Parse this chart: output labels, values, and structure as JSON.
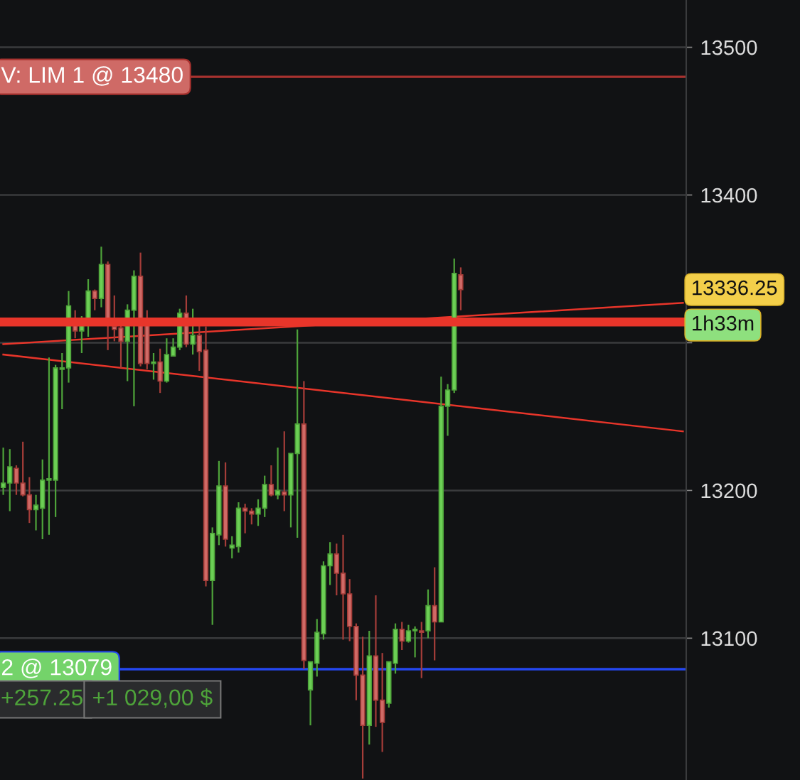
{
  "chart_data": {
    "type": "candlestick",
    "categories": [
      null,
      null,
      null,
      null,
      null,
      null,
      null,
      null,
      null,
      null,
      null,
      null,
      null,
      null,
      null,
      null,
      null,
      null,
      null,
      null,
      null,
      null,
      null,
      null,
      null,
      null,
      null,
      null,
      null,
      null,
      null,
      null,
      null,
      null,
      null,
      null,
      null,
      null,
      null,
      null,
      null,
      null,
      null,
      null,
      null,
      null,
      null,
      null,
      null,
      null,
      null,
      null,
      null,
      null,
      null,
      null,
      null,
      null,
      null,
      null,
      null,
      null,
      null,
      null,
      null,
      null,
      null,
      null,
      null,
      null,
      null,
      null,
      null,
      null,
      null,
      null,
      null,
      null,
      null,
      null,
      null,
      null,
      null,
      null,
      null,
      null,
      null,
      null,
      null,
      null,
      null,
      null,
      null,
      null,
      null,
      null,
      null,
      null,
      null,
      null,
      null,
      null,
      null,
      null,
      null
    ],
    "ohlc": [
      [
        13202,
        13229,
        13197,
        13205
      ],
      [
        13205,
        13228,
        13186,
        13216
      ],
      [
        13215,
        13217,
        13197,
        13205
      ],
      [
        13205,
        13233,
        13196,
        13197
      ],
      [
        13197,
        13209,
        13178,
        13187
      ],
      [
        13187,
        13197,
        13173,
        13190
      ],
      [
        13188,
        13221,
        13167,
        13207
      ],
      [
        13207,
        13290,
        13170,
        13208
      ],
      [
        13207,
        13285,
        13182,
        13283
      ],
      [
        13282,
        13293,
        13255,
        13283
      ],
      [
        13283,
        13335,
        13273,
        13325
      ],
      [
        13312,
        13322,
        13303,
        13308
      ],
      [
        13308,
        13318,
        13293,
        13312
      ],
      [
        13312,
        13343,
        13304,
        13335
      ],
      [
        13335,
        13336,
        13322,
        13330
      ],
      [
        13330,
        13365,
        13324,
        13353
      ],
      [
        13353,
        13355,
        13295,
        13312
      ],
      [
        13311,
        13332,
        13301,
        13309
      ],
      [
        13310,
        13312,
        13283,
        13301
      ],
      [
        13301,
        13326,
        13274,
        13322
      ],
      [
        13322,
        13349,
        13257,
        13345
      ],
      [
        13345,
        13361,
        13284,
        13286
      ],
      [
        13312,
        13322,
        13282,
        13286
      ],
      [
        13286,
        13293,
        13275,
        13287
      ],
      [
        13287,
        13296,
        13266,
        13274
      ],
      [
        13274,
        13303,
        13273,
        13292
      ],
      [
        13291,
        13303,
        13291,
        13297
      ],
      [
        13297,
        13323,
        13295,
        13320
      ],
      [
        13320,
        13332,
        13297,
        13299
      ],
      [
        13299,
        13323,
        13292,
        13305
      ],
      [
        13305,
        13312,
        13281,
        13294
      ],
      [
        13295,
        13311,
        13135,
        13139
      ],
      [
        13139,
        13175,
        13109,
        13171
      ],
      [
        13170,
        13220,
        13163,
        13203
      ],
      [
        13203,
        13219,
        13162,
        13167
      ],
      [
        13161,
        13169,
        13154,
        13163
      ],
      [
        13162,
        13192,
        13158,
        13188
      ],
      [
        13188,
        13191,
        13171,
        13186
      ],
      [
        13186,
        13188,
        13177,
        13184
      ],
      [
        13184,
        13194,
        13176,
        13188
      ],
      [
        13188,
        13210,
        13182,
        13204
      ],
      [
        13204,
        13217,
        13196,
        13197
      ],
      [
        13197,
        13229,
        13194,
        13200
      ],
      [
        13199,
        13240,
        13186,
        13197
      ],
      [
        13197,
        13225,
        13175,
        13225
      ],
      [
        13225,
        13309,
        13168,
        13245
      ],
      [
        13245,
        13274,
        13079,
        13085
      ],
      [
        13065,
        13084,
        13041,
        13084
      ],
      [
        13083,
        13113,
        13074,
        13104
      ],
      [
        13103,
        13152,
        13099,
        13149
      ],
      [
        13149,
        13165,
        13136,
        13157
      ],
      [
        13157,
        13164,
        13129,
        13144
      ],
      [
        13144,
        13170,
        13099,
        13130
      ],
      [
        13130,
        13140,
        13098,
        13108
      ],
      [
        13108,
        13110,
        13058,
        13075
      ],
      [
        13075,
        13101,
        13005,
        13041
      ],
      [
        13041,
        13105,
        13028,
        13088
      ],
      [
        13088,
        13129,
        13040,
        13058
      ],
      [
        13058,
        13090,
        13023,
        13043
      ],
      [
        13056,
        13084,
        13053,
        13084
      ],
      [
        13083,
        13110,
        13076,
        13106
      ],
      [
        13106,
        13111,
        13092,
        13098
      ],
      [
        13098,
        13109,
        13097,
        13105
      ],
      [
        13105,
        13108,
        13087,
        13106
      ],
      [
        13105,
        13111,
        13073,
        13104
      ],
      [
        13105,
        13133,
        13100,
        13122
      ],
      [
        13122,
        13148,
        13085,
        13111
      ],
      [
        13111,
        13277,
        13111,
        13257
      ],
      [
        13257,
        13272,
        13237,
        13268
      ],
      [
        13268,
        13357,
        13266,
        13347
      ],
      [
        13346,
        13351,
        13322,
        13336
      ],
      null,
      null,
      null,
      null,
      null,
      null,
      null,
      null,
      null,
      null,
      null,
      null,
      null,
      null,
      null,
      null,
      null,
      null,
      null,
      null,
      null,
      null,
      null,
      null,
      null,
      null,
      null,
      null,
      null,
      null,
      null,
      null,
      null,
      null
    ],
    "series": [
      {
        "type": "line",
        "values": [
          13299,
          null,
          null,
          null,
          null,
          null,
          null,
          null,
          null,
          null,
          null,
          null,
          null,
          null,
          null,
          null,
          null,
          null,
          null,
          null,
          null,
          null,
          null,
          null,
          null,
          null,
          null,
          null,
          null,
          null,
          null,
          null,
          null,
          null,
          null,
          null,
          null,
          null,
          null,
          null,
          null,
          null,
          null,
          null,
          null,
          null,
          null,
          null,
          null,
          null,
          null,
          null,
          null,
          null,
          null,
          null,
          null,
          null,
          null,
          null,
          null,
          null,
          null,
          null,
          null,
          null,
          null,
          null,
          null,
          null,
          null,
          null,
          null,
          null,
          null,
          null,
          null,
          null,
          null,
          null,
          null,
          null,
          null,
          null,
          null,
          null,
          null,
          null,
          null,
          null,
          null,
          null,
          null,
          null,
          null,
          null,
          null,
          null,
          null,
          null,
          null,
          null,
          null,
          null,
          13327
        ],
        "color": "#e8352a"
      },
      {
        "type": "line",
        "values": [
          13292,
          null,
          null,
          null,
          null,
          null,
          null,
          null,
          null,
          null,
          null,
          null,
          null,
          null,
          null,
          null,
          null,
          null,
          null,
          null,
          null,
          null,
          null,
          null,
          null,
          null,
          null,
          null,
          null,
          null,
          null,
          null,
          null,
          null,
          null,
          null,
          null,
          null,
          null,
          null,
          null,
          null,
          null,
          null,
          null,
          null,
          null,
          null,
          null,
          null,
          null,
          null,
          null,
          null,
          null,
          null,
          null,
          null,
          null,
          null,
          null,
          null,
          null,
          null,
          null,
          null,
          null,
          null,
          null,
          null,
          null,
          null,
          null,
          null,
          null,
          null,
          null,
          null,
          null,
          null,
          null,
          null,
          null,
          null,
          null,
          null,
          null,
          null,
          null,
          null,
          null,
          null,
          null,
          null,
          null,
          null,
          null,
          null,
          null,
          null,
          null,
          null,
          null,
          null,
          13240
        ],
        "color": "#e8352a"
      }
    ],
    "ylim": [
      13004,
      13532
    ],
    "yticks": [
      13100,
      13200,
      {
        "value": 13300,
        "label": null
      },
      13400,
      13500
    ],
    "grid": "y",
    "tick_labels": "y",
    "ref_lines": [
      {
        "axis": "y",
        "value": 13480,
        "label": "V: LIM 1 @ 13480",
        "color": "#a8322f"
      },
      {
        "axis": "y",
        "value": 13314,
        "color": "#e8352a"
      },
      {
        "axis": "y",
        "value": 13079,
        "label": "2 @ 13079",
        "color": "#2447f0"
      }
    ],
    "annotations": [
      "13336.25",
      "1h33m",
      "+257.25",
      "+1 029,00 $"
    ]
  }
}
